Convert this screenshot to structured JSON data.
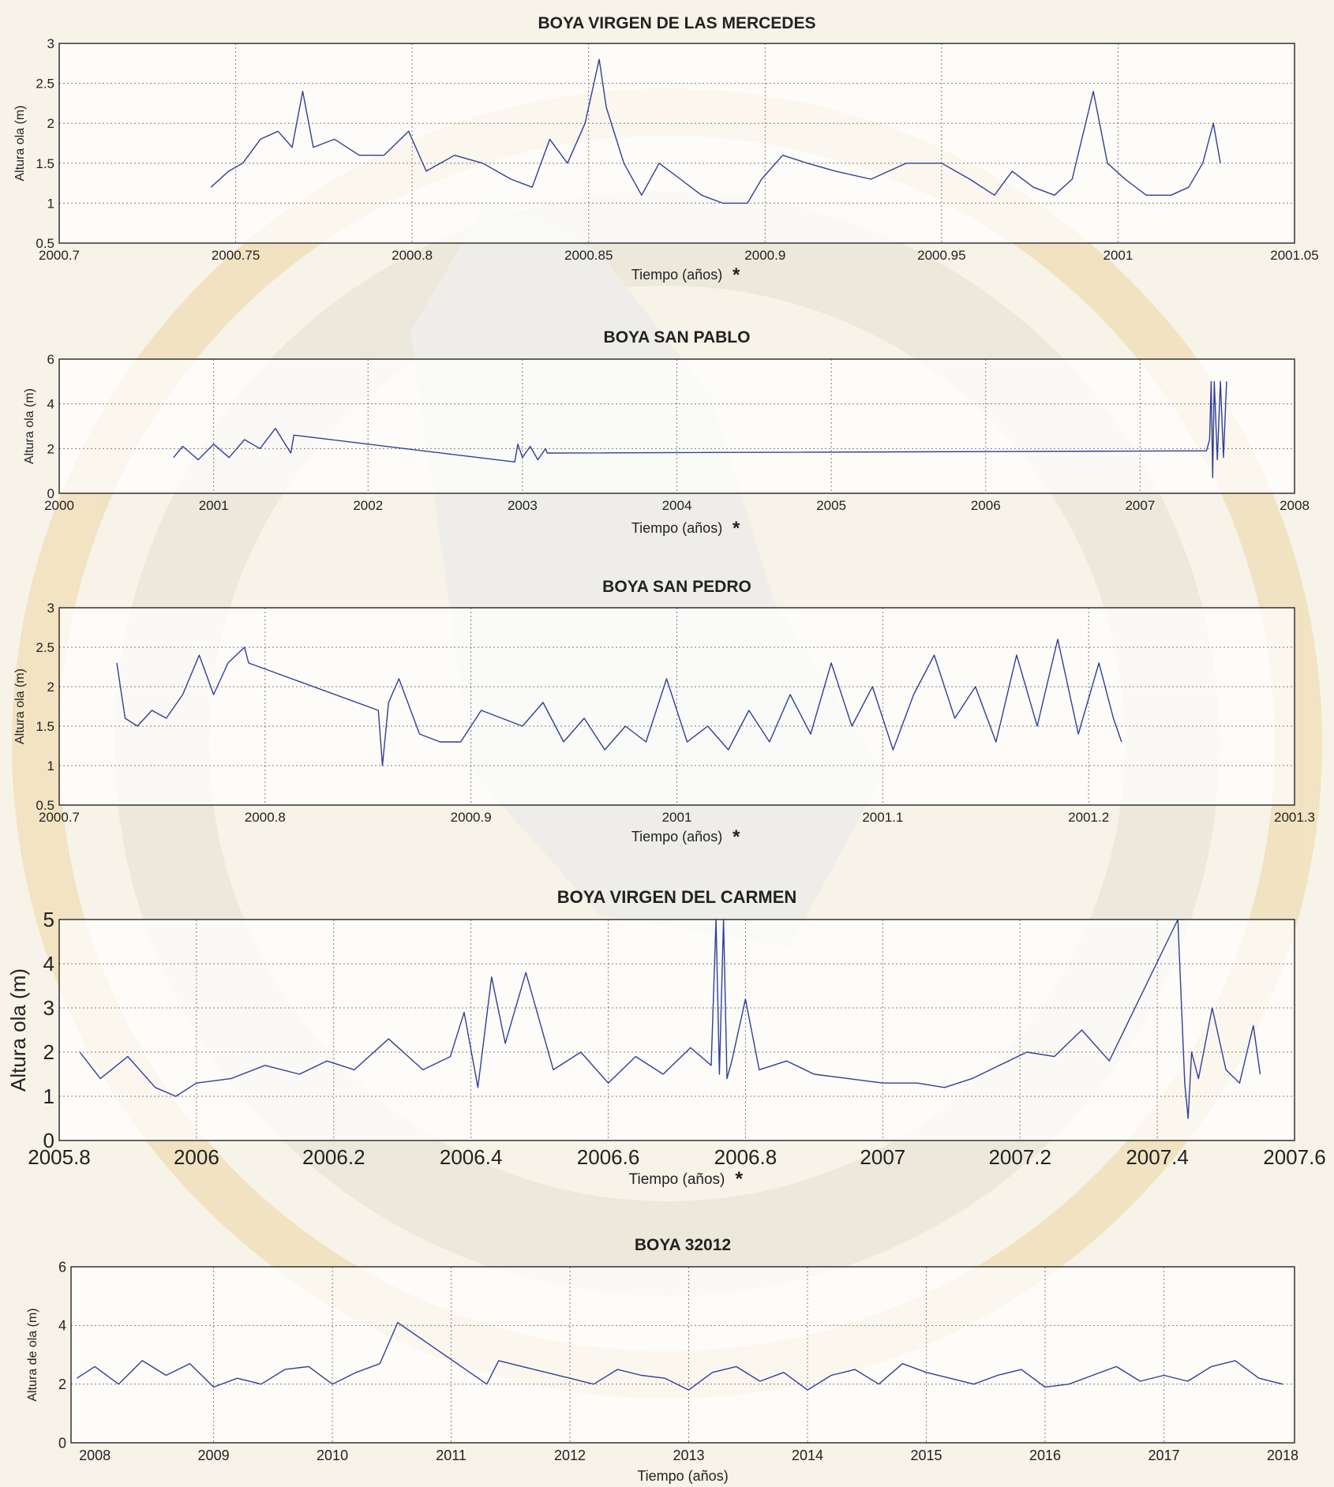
{
  "colors": {
    "background": "#f7f3e8",
    "plot_bg": "#ffffff",
    "series": "#2f3f9a",
    "text": "#222222",
    "watermark": "#e7c77a"
  },
  "chart_data": [
    {
      "type": "line",
      "title": "BOYA VIRGEN DE LAS MERCEDES",
      "xlabel": "Tiempo (años)",
      "xlabel_mark": "*",
      "ylabel": "Altura ola (m)",
      "xlim": [
        2000.7,
        2001.05
      ],
      "ylim": [
        0.5,
        3
      ],
      "grid": true,
      "xticks": [
        "2000.7",
        "2000.75",
        "2000.8",
        "2000.85",
        "2000.9",
        "2000.95",
        "2001",
        "2001.05"
      ],
      "yticks": [
        "0.5",
        "1",
        "1.5",
        "2",
        "2.5",
        "3"
      ],
      "series": [
        {
          "x": [
            2000.743,
            2000.748,
            2000.752,
            2000.757,
            2000.762,
            2000.766,
            2000.769,
            2000.772,
            2000.778,
            2000.785,
            2000.792,
            2000.799,
            2000.804,
            2000.812,
            2000.82,
            2000.828,
            2000.834,
            2000.839,
            2000.844,
            2000.849,
            2000.853,
            2000.855,
            2000.86,
            2000.865,
            2000.87,
            2000.876,
            2000.882,
            2000.888,
            2000.895,
            2000.899,
            2000.905,
            2000.912,
            2000.92,
            2000.93,
            2000.94,
            2000.95,
            2000.958,
            2000.965,
            2000.97,
            2000.976,
            2000.982,
            2000.987,
            2000.993,
            2000.997,
            2001.002,
            2001.008,
            2001.015,
            2001.02,
            2001.024,
            2001.027,
            2001.029
          ],
          "y": [
            1.2,
            1.4,
            1.5,
            1.8,
            1.9,
            1.7,
            2.4,
            1.7,
            1.8,
            1.6,
            1.6,
            1.9,
            1.4,
            1.6,
            1.5,
            1.3,
            1.2,
            1.8,
            1.5,
            2.0,
            2.8,
            2.2,
            1.5,
            1.1,
            1.5,
            1.3,
            1.1,
            1.0,
            1.0,
            1.3,
            1.6,
            1.5,
            1.4,
            1.3,
            1.5,
            1.5,
            1.3,
            1.1,
            1.4,
            1.2,
            1.1,
            1.3,
            2.4,
            1.5,
            1.3,
            1.1,
            1.1,
            1.2,
            1.5,
            2.0,
            1.5
          ]
        }
      ]
    },
    {
      "type": "line",
      "title": "BOYA SAN PABLO",
      "xlabel": "Tiempo (años)",
      "xlabel_mark": "*",
      "ylabel": "Altura ola (m)",
      "xlim": [
        2000,
        2008
      ],
      "ylim": [
        0,
        6
      ],
      "grid": true,
      "xticks": [
        "2000",
        "2001",
        "2002",
        "2003",
        "2004",
        "2005",
        "2006",
        "2007",
        "2008"
      ],
      "yticks": [
        "0",
        "2",
        "4",
        "6"
      ],
      "series": [
        {
          "x": [
            2000.74,
            2000.8,
            2000.9,
            2001.0,
            2001.1,
            2001.2,
            2001.3,
            2001.4,
            2001.5,
            2001.52,
            2002.95,
            2002.97,
            2003.0,
            2003.05,
            2003.1,
            2003.15,
            2003.16,
            2007.43,
            2007.45,
            2007.46,
            2007.47,
            2007.48,
            2007.5,
            2007.52,
            2007.54,
            2007.56
          ],
          "y": [
            1.6,
            2.1,
            1.5,
            2.2,
            1.6,
            2.4,
            2.0,
            2.9,
            1.8,
            2.6,
            1.4,
            2.2,
            1.6,
            2.1,
            1.5,
            2.0,
            1.8,
            1.9,
            2.4,
            5.0,
            0.7,
            5.0,
            1.5,
            5.0,
            1.6,
            5.0
          ]
        }
      ]
    },
    {
      "type": "line",
      "title": "BOYA SAN PEDRO",
      "xlabel": "Tiempo (años)",
      "xlabel_mark": "*",
      "ylabel": "Altura ola (m)",
      "xlim": [
        2000.7,
        2001.3
      ],
      "ylim": [
        0.5,
        3
      ],
      "grid": true,
      "xticks": [
        "2000.7",
        "2000.8",
        "2000.9",
        "2001",
        "2001.1",
        "2001.2",
        "2001.3"
      ],
      "yticks": [
        "0.5",
        "1",
        "1.5",
        "2",
        "2.5",
        "3"
      ],
      "series": [
        {
          "x": [
            2000.728,
            2000.732,
            2000.738,
            2000.745,
            2000.752,
            2000.76,
            2000.768,
            2000.775,
            2000.782,
            2000.79,
            2000.792,
            2000.855,
            2000.857,
            2000.86,
            2000.865,
            2000.875,
            2000.885,
            2000.895,
            2000.905,
            2000.915,
            2000.925,
            2000.935,
            2000.945,
            2000.955,
            2000.965,
            2000.975,
            2000.985,
            2000.995,
            2001.005,
            2001.015,
            2001.025,
            2001.035,
            2001.045,
            2001.055,
            2001.065,
            2001.075,
            2001.085,
            2001.095,
            2001.105,
            2001.115,
            2001.125,
            2001.135,
            2001.145,
            2001.155,
            2001.165,
            2001.175,
            2001.185,
            2001.195,
            2001.205,
            2001.212,
            2001.216
          ],
          "y": [
            2.3,
            1.6,
            1.5,
            1.7,
            1.6,
            1.9,
            2.4,
            1.9,
            2.3,
            2.5,
            2.3,
            1.7,
            1.0,
            1.8,
            2.1,
            1.4,
            1.3,
            1.3,
            1.7,
            1.6,
            1.5,
            1.8,
            1.3,
            1.6,
            1.2,
            1.5,
            1.3,
            2.1,
            1.3,
            1.5,
            1.2,
            1.7,
            1.3,
            1.9,
            1.4,
            2.3,
            1.5,
            2.0,
            1.2,
            1.9,
            2.4,
            1.6,
            2.0,
            1.3,
            2.4,
            1.5,
            2.6,
            1.4,
            2.3,
            1.6,
            1.3
          ]
        }
      ]
    },
    {
      "type": "line",
      "title": "BOYA VIRGEN DEL CARMEN",
      "xlabel": "Tiempo (años)",
      "xlabel_mark": "*",
      "ylabel": "Altura ola (m)",
      "xlim": [
        2005.8,
        2007.6
      ],
      "ylim": [
        0,
        5
      ],
      "grid": true,
      "xticks": [
        "2005.8",
        "2006",
        "2006.2",
        "2006.4",
        "2006.6",
        "2006.8",
        "2007",
        "2007.2",
        "2007.4",
        "2007.6"
      ],
      "yticks": [
        "0",
        "1",
        "2",
        "3",
        "4",
        "5"
      ],
      "series": [
        {
          "x": [
            2005.83,
            2005.86,
            2005.9,
            2005.94,
            2005.97,
            2006.0,
            2006.05,
            2006.1,
            2006.15,
            2006.19,
            2006.23,
            2006.28,
            2006.33,
            2006.37,
            2006.39,
            2006.41,
            2006.43,
            2006.45,
            2006.48,
            2006.52,
            2006.56,
            2006.6,
            2006.64,
            2006.68,
            2006.72,
            2006.75,
            2006.757,
            2006.762,
            2006.768,
            2006.773,
            2006.78,
            2006.8,
            2006.82,
            2006.86,
            2006.9,
            2006.95,
            2007.0,
            2007.05,
            2007.09,
            2007.13,
            2007.17,
            2007.21,
            2007.25,
            2007.29,
            2007.33,
            2007.43,
            2007.44,
            2007.445,
            2007.45,
            2007.46,
            2007.48,
            2007.5,
            2007.52,
            2007.54,
            2007.55
          ],
          "y": [
            2.0,
            1.4,
            1.9,
            1.2,
            1.0,
            1.3,
            1.4,
            1.7,
            1.5,
            1.8,
            1.6,
            2.3,
            1.6,
            1.9,
            2.9,
            1.2,
            3.7,
            2.2,
            3.8,
            1.6,
            2.0,
            1.3,
            1.9,
            1.5,
            2.1,
            1.7,
            5.0,
            1.5,
            5.0,
            1.4,
            1.8,
            3.2,
            1.6,
            1.8,
            1.5,
            1.4,
            1.3,
            1.3,
            1.2,
            1.4,
            1.7,
            2.0,
            1.9,
            2.5,
            1.8,
            5.0,
            1.3,
            0.5,
            2.0,
            1.4,
            3.0,
            1.6,
            1.3,
            2.6,
            1.5
          ]
        }
      ]
    },
    {
      "type": "line",
      "title": "BOYA 32012",
      "xlabel": "Tiempo (años)",
      "xlabel_mark": "",
      "ylabel": "Altura de ola (m)",
      "xlim": [
        2007.8,
        2018.1
      ],
      "ylim": [
        0,
        6
      ],
      "grid": true,
      "xticks": [
        "2008",
        "2009",
        "2010",
        "2011",
        "2012",
        "2013",
        "2014",
        "2015",
        "2016",
        "2017",
        "2018"
      ],
      "yticks": [
        "0",
        "2",
        "4",
        "6"
      ],
      "series": [
        {
          "x": [
            2007.85,
            2008.0,
            2008.2,
            2008.4,
            2008.6,
            2008.8,
            2009.0,
            2009.2,
            2009.4,
            2009.6,
            2009.8,
            2010.0,
            2010.2,
            2010.4,
            2010.55,
            2011.3,
            2011.4,
            2011.6,
            2011.8,
            2012.0,
            2012.2,
            2012.4,
            2012.6,
            2012.8,
            2013.0,
            2013.2,
            2013.4,
            2013.6,
            2013.8,
            2014.0,
            2014.2,
            2014.4,
            2014.6,
            2014.8,
            2015.0,
            2015.2,
            2015.4,
            2015.6,
            2015.8,
            2016.0,
            2016.2,
            2016.4,
            2016.6,
            2016.8,
            2017.0,
            2017.2,
            2017.4,
            2017.6,
            2017.8,
            2018.0
          ],
          "y": [
            2.2,
            2.6,
            2.0,
            2.8,
            2.3,
            2.7,
            1.9,
            2.2,
            2.0,
            2.5,
            2.6,
            2.0,
            2.4,
            2.7,
            4.1,
            2.0,
            2.8,
            2.6,
            2.4,
            2.2,
            2.0,
            2.5,
            2.3,
            2.2,
            1.8,
            2.4,
            2.6,
            2.1,
            2.4,
            1.8,
            2.3,
            2.5,
            2.0,
            2.7,
            2.4,
            2.2,
            2.0,
            2.3,
            2.5,
            1.9,
            2.0,
            2.3,
            2.6,
            2.1,
            2.3,
            2.1,
            2.6,
            2.8,
            2.2,
            2.0
          ]
        }
      ]
    }
  ]
}
